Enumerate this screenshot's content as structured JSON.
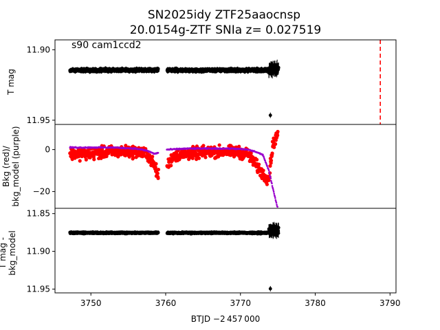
{
  "title": {
    "line1": "SN2025idy  ZTF25aaocnsp",
    "line2": "20.0154g-ZTF SNIa z= 0.027519"
  },
  "x_axis": {
    "label": "BTJD −2 457 000",
    "range": [
      3745.2,
      3790.8
    ],
    "ticks": [
      3750,
      3760,
      3770,
      3780,
      3790
    ],
    "tick_labels": [
      "3750",
      "3760",
      "3770",
      "3780",
      "3790"
    ]
  },
  "chart_data": [
    {
      "type": "scatter",
      "panel": "top",
      "annotation": "s90 cam1ccd2",
      "ylabel": "T mag",
      "ylim": [
        11.953,
        11.893
      ],
      "inverted": true,
      "yticks": [
        11.9,
        11.95
      ],
      "ytick_labels": [
        "11.90",
        "11.95"
      ],
      "series": [
        {
          "color": "#000000",
          "segments": [
            {
              "x_start": 3747.2,
              "x_end": 3759.0,
              "y_center": 11.9145,
              "y_scatter": 0.0015
            },
            {
              "x_start": 3760.2,
              "x_end": 3773.8,
              "y_center": 11.9145,
              "y_scatter": 0.0015
            },
            {
              "x_start": 3773.8,
              "x_end": 3775.1,
              "y_center": 11.914,
              "y_scatter": 0.004
            }
          ],
          "outliers": [
            {
              "x": 3774.0,
              "y": 11.9465
            }
          ]
        }
      ],
      "vline": {
        "x": 3788.7,
        "color": "#ff0000",
        "style": "dashed"
      }
    },
    {
      "type": "scatter",
      "panel": "middle",
      "ylabel_lines": [
        "Bkg (red)/",
        "bkg_model (purple)"
      ],
      "ylim": [
        -28,
        12
      ],
      "yticks": [
        0,
        -20
      ],
      "ytick_labels": [
        "0",
        "−20"
      ],
      "series": [
        {
          "color": "#ff0000",
          "points": [
            {
              "x": 3747.2,
              "y": -2
            },
            {
              "x": 3750,
              "y": -2
            },
            {
              "x": 3753,
              "y": -1
            },
            {
              "x": 3756,
              "y": -1
            },
            {
              "x": 3757.5,
              "y": -2
            },
            {
              "x": 3758.5,
              "y": -8
            },
            {
              "x": 3759.0,
              "y": -12
            },
            {
              "x": 3760.2,
              "y": -8
            },
            {
              "x": 3761,
              "y": -3
            },
            {
              "x": 3763,
              "y": -2
            },
            {
              "x": 3766,
              "y": -1
            },
            {
              "x": 3769,
              "y": -1
            },
            {
              "x": 3771,
              "y": -2
            },
            {
              "x": 3772,
              "y": -7
            },
            {
              "x": 3773,
              "y": -12
            },
            {
              "x": 3773.8,
              "y": -14
            },
            {
              "x": 3774.3,
              "y": 2
            },
            {
              "x": 3775.0,
              "y": 8
            }
          ],
          "scatter": 4
        },
        {
          "color": "#9900cc",
          "points": [
            {
              "x": 3747.2,
              "y": 1
            },
            {
              "x": 3750,
              "y": 1
            },
            {
              "x": 3753,
              "y": 1
            },
            {
              "x": 3756,
              "y": 0.5
            },
            {
              "x": 3757.5,
              "y": -0.5
            },
            {
              "x": 3758.5,
              "y": -2
            },
            {
              "x": 3759.0,
              "y": -1.5
            },
            {
              "x": 3760.2,
              "y": 0
            },
            {
              "x": 3763,
              "y": 0.5
            },
            {
              "x": 3766,
              "y": 0.5
            },
            {
              "x": 3769,
              "y": 0.5
            },
            {
              "x": 3771,
              "y": 0
            },
            {
              "x": 3772,
              "y": -1
            },
            {
              "x": 3773,
              "y": -2.5
            },
            {
              "x": 3773.8,
              "y": -10
            },
            {
              "x": 3774.3,
              "y": -18
            },
            {
              "x": 3774.7,
              "y": -24
            },
            {
              "x": 3775.0,
              "y": -28
            }
          ]
        }
      ]
    },
    {
      "type": "scatter",
      "panel": "bottom",
      "ylabel_lines": [
        "T mag -",
        "bkg_model"
      ],
      "ylim": [
        11.955,
        11.843
      ],
      "inverted": true,
      "yticks": [
        11.85,
        11.9,
        11.95
      ],
      "ytick_labels": [
        "11.85",
        "11.90",
        "11.95"
      ],
      "series": [
        {
          "color": "#000000",
          "segments": [
            {
              "x_start": 3747.2,
              "x_end": 3759.0,
              "y_center": 11.8755,
              "y_scatter": 0.0015
            },
            {
              "x_start": 3760.2,
              "x_end": 3773.8,
              "y_center": 11.8755,
              "y_scatter": 0.0015
            },
            {
              "x_start": 3773.8,
              "x_end": 3775.1,
              "y_center": 11.872,
              "y_scatter": 0.007
            }
          ],
          "outliers": [
            {
              "x": 3774.0,
              "y": 11.9495
            }
          ]
        }
      ]
    }
  ]
}
